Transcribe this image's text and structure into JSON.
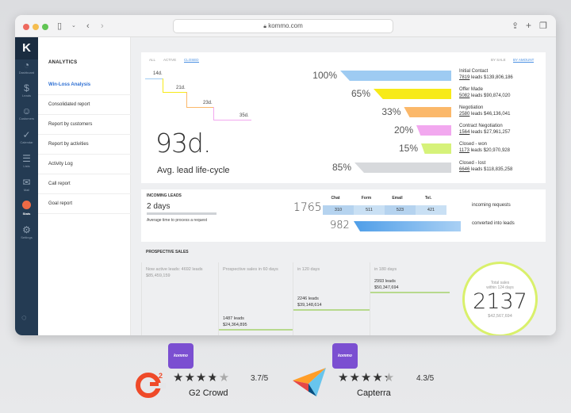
{
  "browser": {
    "url": "kommo.com"
  },
  "sidebar": {
    "logo": "K",
    "items": [
      {
        "label": "Dashboard",
        "icon": "gauge-icon"
      },
      {
        "label": "Leads",
        "icon": "dollar-icon"
      },
      {
        "label": "Customers",
        "icon": "customers-icon"
      },
      {
        "label": "Calendar",
        "icon": "check-icon"
      },
      {
        "label": "Lists",
        "icon": "list-icon"
      },
      {
        "label": "Mail",
        "icon": "mail-icon"
      },
      {
        "label": "Stats",
        "icon": "stats-icon"
      },
      {
        "label": "Settings",
        "icon": "gear-icon"
      }
    ]
  },
  "submenu": {
    "title": "ANALYTICS",
    "items": [
      "Win-Loss Analysis",
      "Consolidated report",
      "Report by customers",
      "Report by activities",
      "Activity Log",
      "Call report",
      "Goal report"
    ]
  },
  "winloss": {
    "tabs": [
      "ALL",
      "ACTIVE",
      "CLOSED"
    ],
    "sort": [
      "BY SALE",
      "BY AMOUNT"
    ],
    "steps": [
      "14d.",
      "21d.",
      "23d.",
      "35d."
    ],
    "big_value": "93d.",
    "big_label": "Avg. lead life-cycle",
    "stages": [
      {
        "pct": "100%",
        "name": "Initial Contact",
        "leads": "7819",
        "rest": " leads $139,806,186",
        "color": "#9ecbf2",
        "fill": 1.0
      },
      {
        "pct": "65%",
        "name": "Offer Made",
        "leads": "5082",
        "rest": " leads $90,874,020",
        "color": "#f7ea18",
        "fill": 0.65
      },
      {
        "pct": "33%",
        "name": "Negotiation",
        "leads": "2580",
        "rest": " leads $46,136,041",
        "color": "#fbb86a",
        "fill": 0.33
      },
      {
        "pct": "20%",
        "name": "Contract Negotiation",
        "leads": "1564",
        "rest": " leads $27,961,257",
        "color": "#f2a8ef",
        "fill": 0.2
      },
      {
        "pct": "15%",
        "name": "Closed - won",
        "leads": "1173",
        "rest": " leads $20,970,928",
        "color": "#d6f27a",
        "fill": 0.15
      },
      {
        "pct": "85%",
        "name": "Closed - lost",
        "leads": "6646",
        "rest": " leads $118,835,258",
        "color": "#d7d9dc",
        "fill": 0.85
      }
    ]
  },
  "incoming": {
    "title": "INCOMING LEADS",
    "time_value": "2 days",
    "time_label": "Average time to process a request",
    "total": "1765",
    "converted": "982",
    "channels": [
      {
        "name": "Chat",
        "value": "310"
      },
      {
        "name": "Form",
        "value": "511"
      },
      {
        "name": "Email",
        "value": "523"
      },
      {
        "name": "Tel.",
        "value": "421"
      }
    ],
    "total_label": "incoming requests",
    "converted_label": "converted into leads"
  },
  "prospective": {
    "title": "PROSPECTIVE SALES",
    "columns": [
      {
        "title": "Now active leads: 4692 leads",
        "amount": "$85,459,159",
        "leads": "",
        "value": ""
      },
      {
        "title": "Prospective sales in 60 days",
        "amount": "",
        "leads": "1487 leads",
        "value": "$24,364,895"
      },
      {
        "title": "in 120 days",
        "amount": "",
        "leads": "2246 leads",
        "value": "$39,148,614"
      },
      {
        "title": "in 180 days",
        "amount": "",
        "leads": "2993 leads",
        "value": "$50,347,694"
      }
    ],
    "total_label_1": "Total sales",
    "total_label_2": "within 124 days",
    "total_value": "2137",
    "total_amount": "$42,567,694"
  },
  "reviews": [
    {
      "badge": "kommo",
      "site": "G2 Crowd",
      "rating": "3.7/5",
      "stars": 3.7
    },
    {
      "badge": "kommo",
      "site": "Capterra",
      "rating": "4.3/5",
      "stars": 4.3
    }
  ]
}
